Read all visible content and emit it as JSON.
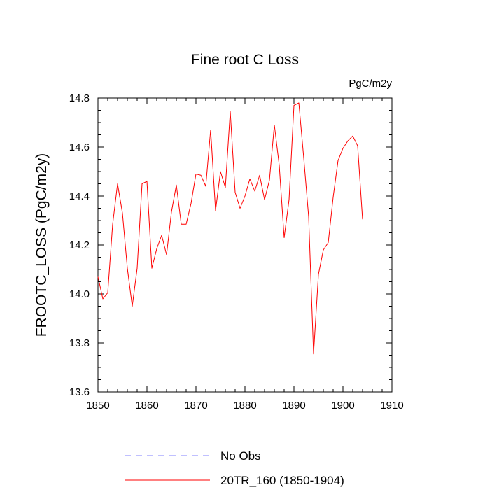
{
  "chart_data": {
    "type": "line",
    "title": "Fine root C Loss",
    "units_label": "PgC/m2y",
    "xlabel": "",
    "ylabel": "FROOTC_LOSS  (PgC/m2y)",
    "xlim": [
      1850,
      1910
    ],
    "ylim": [
      13.6,
      14.8
    ],
    "x_ticks": [
      1850,
      1860,
      1870,
      1880,
      1890,
      1900,
      1910
    ],
    "y_ticks": [
      13.6,
      13.8,
      14.0,
      14.2,
      14.4,
      14.6,
      14.8
    ],
    "x_tick_labels": [
      "1850",
      "1860",
      "1870",
      "1880",
      "1890",
      "1900",
      "1910"
    ],
    "y_tick_labels": [
      "13.6",
      "13.8",
      "14.0",
      "14.2",
      "14.4",
      "14.6",
      "14.8"
    ],
    "x_minor_step": 2,
    "y_minor_step": 0.05,
    "grid": false,
    "legend_position": "bottom",
    "series": [
      {
        "name": "20TR_160 (1850-1904)",
        "color": "#ff0000",
        "style": "solid",
        "x": [
          1850,
          1851,
          1852,
          1853,
          1854,
          1855,
          1856,
          1857,
          1858,
          1859,
          1860,
          1861,
          1862,
          1863,
          1864,
          1865,
          1866,
          1867,
          1868,
          1869,
          1870,
          1871,
          1872,
          1873,
          1874,
          1875,
          1876,
          1877,
          1878,
          1879,
          1880,
          1881,
          1882,
          1883,
          1884,
          1885,
          1886,
          1887,
          1888,
          1889,
          1890,
          1891,
          1892,
          1893,
          1894,
          1895,
          1896,
          1897,
          1898,
          1899,
          1900,
          1901,
          1902,
          1903,
          1904
        ],
        "values": [
          14.07,
          13.98,
          14.005,
          14.285,
          14.45,
          14.33,
          14.105,
          13.95,
          14.105,
          14.45,
          14.46,
          14.105,
          14.185,
          14.24,
          14.16,
          14.335,
          14.445,
          14.285,
          14.285,
          14.37,
          14.49,
          14.485,
          14.44,
          14.67,
          14.34,
          14.5,
          14.435,
          14.745,
          14.415,
          14.35,
          14.4,
          14.47,
          14.42,
          14.485,
          14.385,
          14.465,
          14.69,
          14.525,
          14.23,
          14.385,
          14.77,
          14.78,
          14.555,
          14.315,
          13.755,
          14.08,
          14.18,
          14.21,
          14.395,
          14.545,
          14.595,
          14.625,
          14.645,
          14.605,
          14.305
        ]
      }
    ],
    "legend": [
      {
        "label": "No Obs",
        "color": "#8080ff",
        "style": "dashed"
      },
      {
        "label": "20TR_160 (1850-1904)",
        "color": "#ff0000",
        "style": "solid"
      }
    ]
  }
}
